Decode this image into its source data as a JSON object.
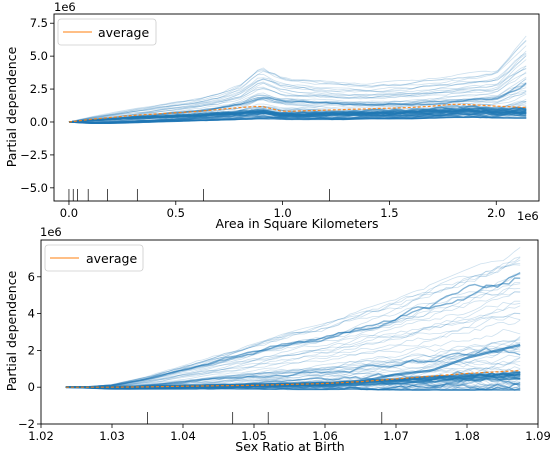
{
  "chart_data": [
    {
      "type": "line",
      "xlabel": "Area in Square Kilometers",
      "ylabel": "Partial dependence",
      "x_offset_label": "1e6",
      "y_offset_label": "1e6",
      "xlim": [
        -0.07,
        2.2
      ],
      "ylim": [
        -6.0,
        8.2
      ],
      "xticks": [
        0.0,
        0.5,
        1.0,
        1.5,
        2.0
      ],
      "xtick_labels": [
        "0.0",
        "0.5",
        "1.0",
        "1.5",
        "2.0"
      ],
      "yticks": [
        -5.0,
        -2.5,
        0.0,
        2.5,
        5.0,
        7.5
      ],
      "ytick_labels": [
        "−5.0",
        "−2.5",
        "0.0",
        "2.5",
        "5.0",
        "7.5"
      ],
      "legend": {
        "position": "top-left",
        "entries": [
          "average"
        ]
      },
      "rug": [
        0.0,
        0.02,
        0.04,
        0.09,
        0.18,
        0.32,
        0.63,
        1.22
      ],
      "ice_count": 70,
      "ice_x": [
        0.0,
        0.1,
        0.2,
        0.3,
        0.4,
        0.5,
        0.6,
        0.7,
        0.8,
        0.9,
        1.0,
        1.1,
        1.2,
        1.3,
        1.4,
        1.5,
        1.6,
        1.7,
        1.8,
        1.9,
        2.0,
        2.14
      ],
      "upper_envelope": [
        0.0,
        0.4,
        0.7,
        1.0,
        1.3,
        1.6,
        1.9,
        2.3,
        3.0,
        4.5,
        3.6,
        3.4,
        3.2,
        3.1,
        3.0,
        3.1,
        3.2,
        3.4,
        3.6,
        3.8,
        4.0,
        6.7
      ],
      "lower_envelope": [
        0.0,
        -0.1,
        -0.1,
        -0.05,
        0.0,
        0.05,
        0.1,
        0.15,
        0.2,
        0.25,
        0.2,
        0.2,
        0.2,
        0.2,
        0.25,
        0.25,
        0.25,
        0.3,
        0.35,
        0.35,
        0.3,
        0.3
      ],
      "average": [
        0.0,
        0.2,
        0.35,
        0.5,
        0.6,
        0.7,
        0.8,
        0.95,
        1.1,
        1.2,
        0.8,
        0.85,
        0.9,
        0.95,
        1.0,
        1.05,
        1.1,
        1.2,
        1.35,
        1.3,
        1.2,
        1.1
      ]
    },
    {
      "type": "line",
      "xlabel": "Sex Ratio at Birth",
      "ylabel": "Partial dependence",
      "y_offset_label": "1e6",
      "xlim": [
        1.02,
        1.09
      ],
      "ylim": [
        -2.0,
        8.0
      ],
      "xticks": [
        1.02,
        1.03,
        1.04,
        1.05,
        1.06,
        1.07,
        1.08,
        1.09
      ],
      "xtick_labels": [
        "1.02",
        "1.03",
        "1.04",
        "1.05",
        "1.06",
        "1.07",
        "1.08",
        "1.09"
      ],
      "yticks": [
        -2,
        0,
        2,
        4,
        6
      ],
      "ytick_labels": [
        "−2",
        "0",
        "2",
        "4",
        "6"
      ],
      "legend": {
        "position": "top-left",
        "entries": [
          "average"
        ]
      },
      "rug": [
        1.035,
        1.047,
        1.052,
        1.068
      ],
      "ice_count": 70,
      "ice_x": [
        1.0235,
        1.027,
        1.03,
        1.035,
        1.04,
        1.045,
        1.05,
        1.055,
        1.06,
        1.065,
        1.07,
        1.075,
        1.08,
        1.0875
      ],
      "upper_envelope": [
        0.0,
        0.05,
        0.15,
        0.6,
        1.2,
        1.8,
        2.4,
        3.0,
        3.5,
        4.2,
        4.8,
        5.6,
        6.4,
        7.6
      ],
      "lower_envelope": [
        0.0,
        -0.05,
        -0.1,
        -0.1,
        -0.1,
        -0.1,
        -0.1,
        -0.12,
        -0.12,
        -0.12,
        -0.15,
        -0.15,
        -0.15,
        -0.15
      ],
      "average": [
        0.0,
        0.0,
        0.0,
        0.02,
        0.05,
        0.08,
        0.1,
        0.15,
        0.2,
        0.3,
        0.45,
        0.6,
        0.75,
        0.9
      ],
      "highlight_curve": [
        0.0,
        0.0,
        0.0,
        0.0,
        0.0,
        0.0,
        0.05,
        0.1,
        0.15,
        0.3,
        0.7,
        0.9,
        1.6,
        2.3
      ]
    }
  ],
  "colors": {
    "ice_line": "#1f77b4",
    "average": "#ff7f0e",
    "axis": "#000000",
    "legend_border": "#cccccc"
  }
}
